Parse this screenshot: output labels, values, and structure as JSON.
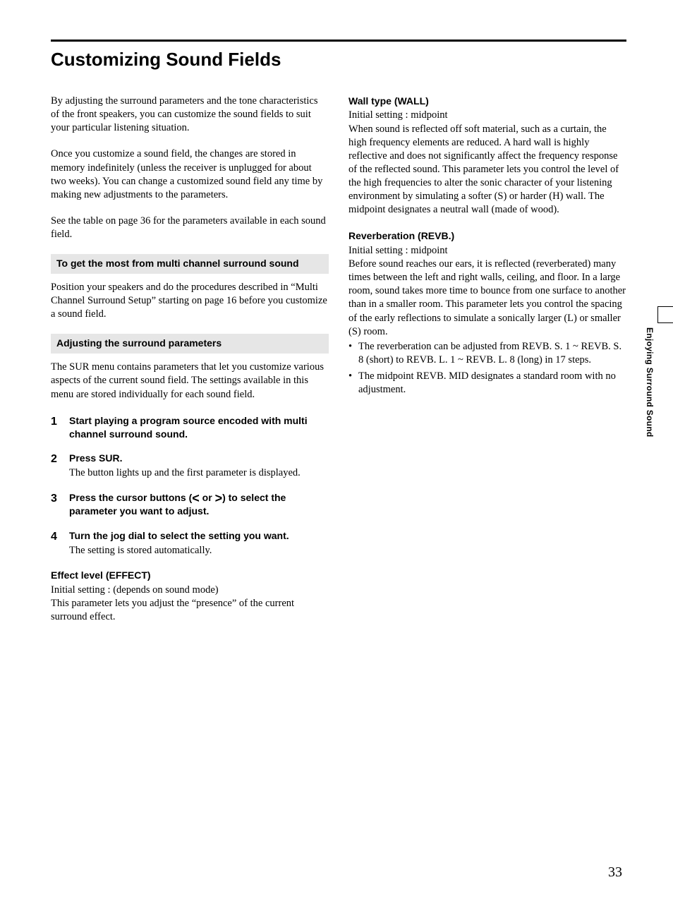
{
  "colors": {
    "text": "#000000",
    "background": "#ffffff",
    "box_bg": "#e6e6e6",
    "rule": "#000000"
  },
  "typography": {
    "body_family": "Palatino",
    "body_size_pt": 11,
    "h1_family": "Arial Black",
    "h1_size_pt": 20,
    "boxhead_family": "Arial",
    "boxhead_size_pt": 11,
    "stepnum_size_pt": 12
  },
  "page_number": "33",
  "side_label": "Enjoying Surround Sound",
  "h1": "Customizing Sound Fields",
  "left": {
    "intro1": "By adjusting the surround parameters and the tone characteristics of the front speakers, you can customize the sound fields to suit your particular listening situation.",
    "intro2": "Once you customize a sound field, the changes are stored in memory indefinitely (unless the receiver is unplugged for about two weeks). You can change a customized sound field any time by making new adjustments to the parameters.",
    "intro3": "See the table on page 36 for the parameters available in each sound field.",
    "box1": "To get the most from multi channel surround sound",
    "box1_body": "Position your speakers and do the procedures described in “Multi Channel Surround Setup” starting on page 16 before you customize a sound field.",
    "box2": "Adjusting the surround parameters",
    "box2_body": "The SUR menu contains parameters that let you customize various aspects of the current sound field. The settings available in this menu are stored individually for each sound field.",
    "steps": [
      {
        "n": "1",
        "bold": "Start playing a program source encoded with multi channel surround sound.",
        "plain": ""
      },
      {
        "n": "2",
        "bold": "Press SUR.",
        "plain": "The button lights up and the first parameter is displayed."
      },
      {
        "n": "3",
        "bold_pre": "Press the cursor buttons (",
        "bold_mid": " or ",
        "bold_post": ") to select the parameter you want to adjust.",
        "plain": ""
      },
      {
        "n": "4",
        "bold": "Turn the jog dial to select the setting you want.",
        "plain": "The setting is stored automatically."
      }
    ],
    "effect": {
      "title": "Effect level (EFFECT)",
      "init": "Initial setting : (depends on sound mode)",
      "body": "This parameter lets you adjust the “presence” of the current surround effect."
    }
  },
  "right": {
    "wall": {
      "title": "Wall type (WALL)",
      "init": "Initial setting : midpoint",
      "body": "When sound is reflected off soft material, such as a curtain, the high frequency elements are reduced. A hard wall is highly reflective and does not significantly affect the frequency response of the reflected sound. This parameter lets you control the level of the high frequencies to alter the sonic character of your listening environment by simulating a softer (S) or harder (H) wall. The midpoint designates a neutral wall (made of wood)."
    },
    "reverb": {
      "title": "Reverberation (REVB.)",
      "init": "Initial setting : midpoint",
      "body": "Before sound reaches our ears, it is reflected (reverberated) many times between the left and right walls, ceiling, and floor. In a large room, sound takes more time to bounce from one surface to another than in a smaller room. This parameter lets you control the spacing of the early reflections to simulate a sonically larger (L) or smaller (S) room.",
      "bullets": [
        "The reverberation can be adjusted from REVB. S. 1 ~ REVB. S. 8 (short) to REVB. L. 1 ~ REVB. L. 8 (long) in 17 steps.",
        "The midpoint REVB. MID designates a standard room with no adjustment."
      ]
    }
  }
}
